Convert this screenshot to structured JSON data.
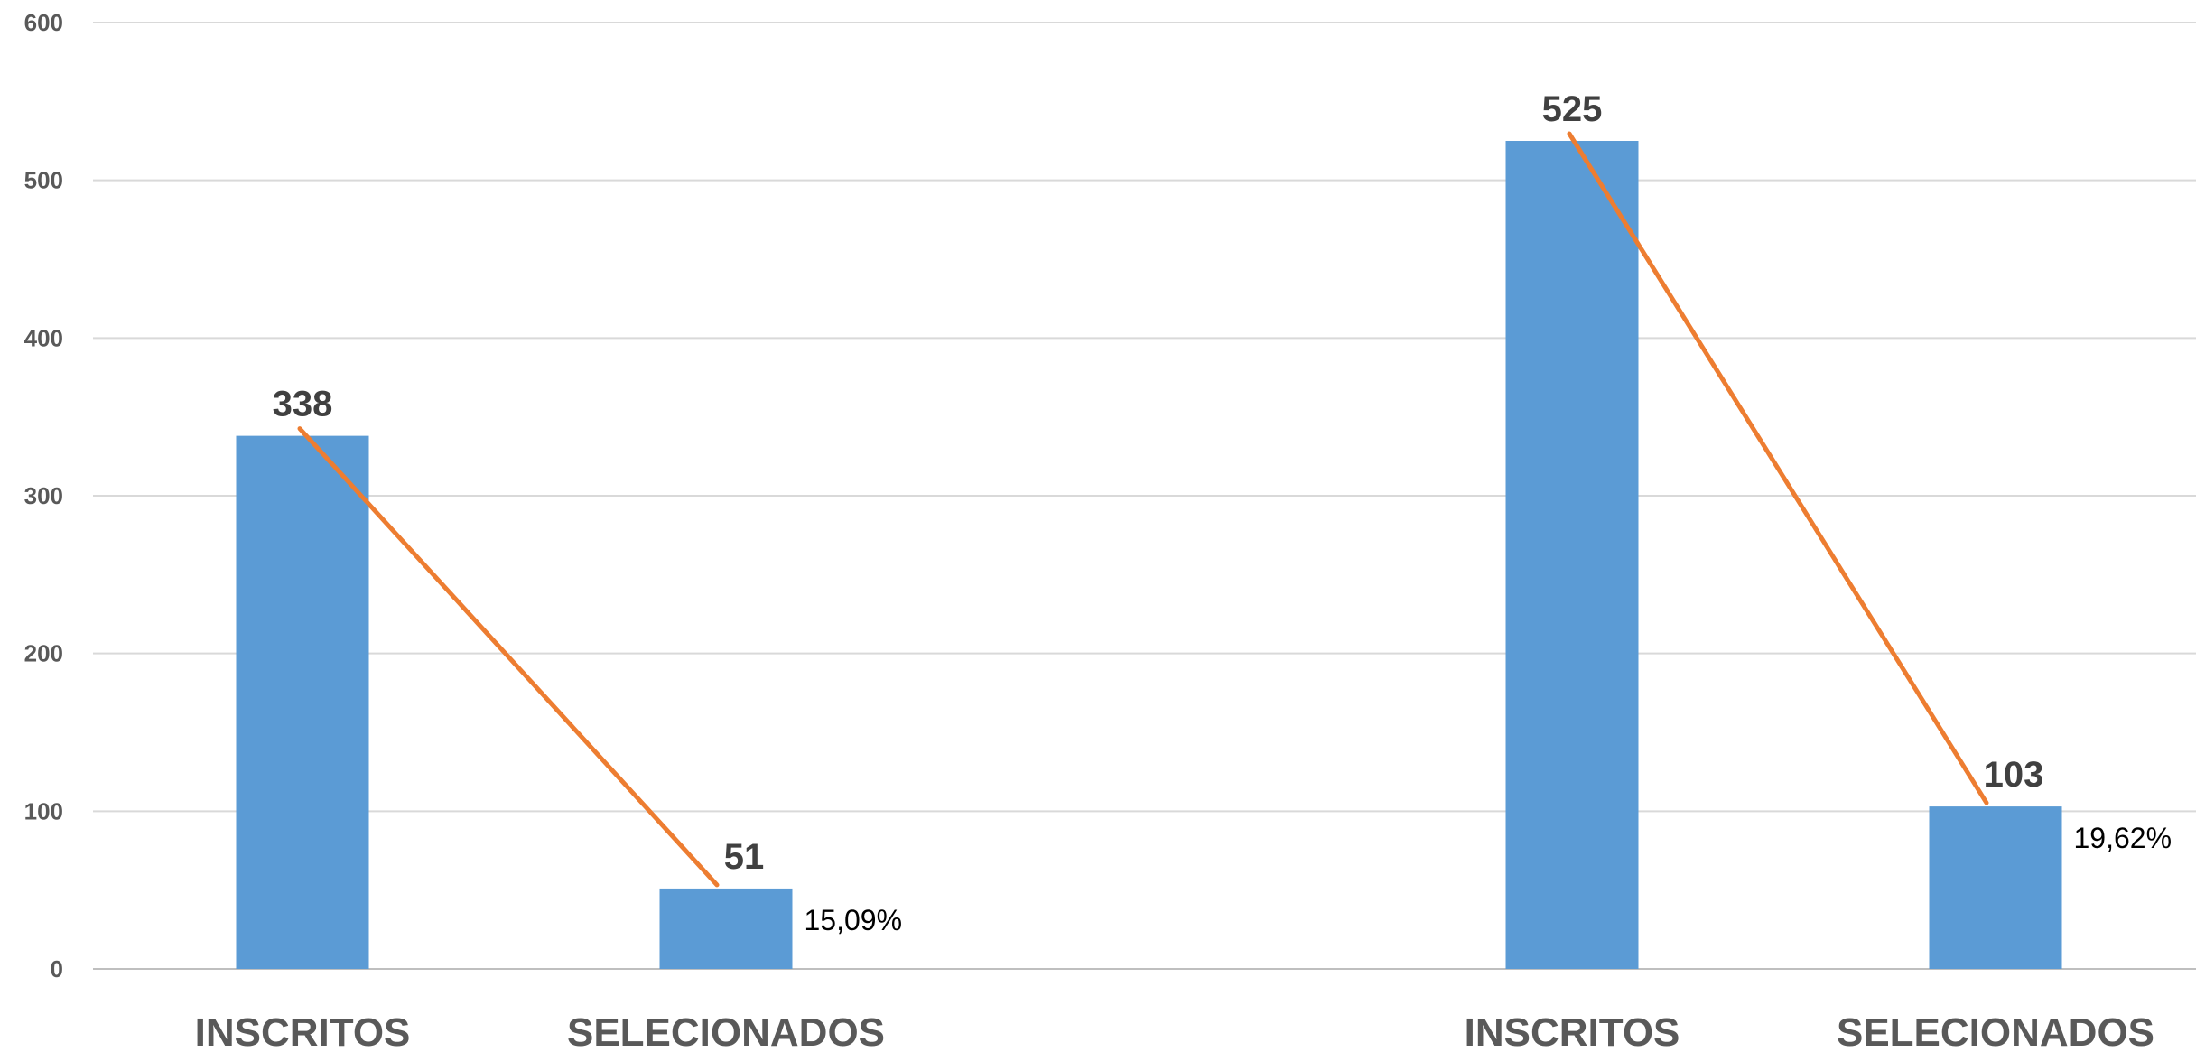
{
  "chart_data": {
    "type": "bar",
    "categories": [
      "INSCRITOS",
      "SELECIONADOS",
      "INSCRITOS",
      "SELECIONADOS"
    ],
    "groups": [
      {
        "inscritos": 338,
        "selecionados": 51,
        "percent_label": "15,09%"
      },
      {
        "inscritos": 525,
        "selecionados": 103,
        "percent_label": "19,62%"
      }
    ],
    "values": [
      338,
      51,
      525,
      103
    ],
    "value_labels": [
      "338",
      "51",
      "525",
      "103"
    ],
    "y_ticks": [
      "0",
      "100",
      "200",
      "300",
      "400",
      "500",
      "600"
    ],
    "ylim": [
      0,
      600
    ],
    "title": "",
    "xlabel": "",
    "ylabel": "",
    "grid": true,
    "legend": "none",
    "colors": {
      "bar": "#5B9BD5",
      "line": "#ED7D31",
      "grid": "#D9D9D9"
    }
  }
}
